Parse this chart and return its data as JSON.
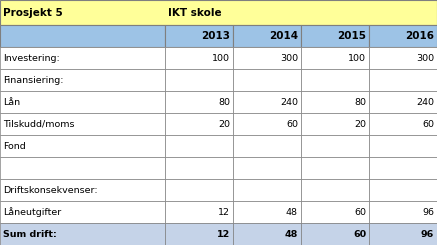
{
  "title_left": "Prosjekt 5",
  "title_right": "IKT skole",
  "header_years": [
    "2013",
    "2014",
    "2015",
    "2016"
  ],
  "rows": [
    {
      "label": "Investering:",
      "values": [
        "100",
        "300",
        "100",
        "300"
      ],
      "bold": false
    },
    {
      "label": "Finansiering:",
      "values": [
        "",
        "",
        "",
        ""
      ],
      "bold": false
    },
    {
      "label": "Lån",
      "values": [
        "80",
        "240",
        "80",
        "240"
      ],
      "bold": false
    },
    {
      "label": "Tilskudd/moms",
      "values": [
        "20",
        "60",
        "20",
        "60"
      ],
      "bold": false
    },
    {
      "label": "Fond",
      "values": [
        "",
        "",
        "",
        ""
      ],
      "bold": false
    },
    {
      "label": "",
      "values": [
        "",
        "",
        "",
        ""
      ],
      "bold": false
    },
    {
      "label": "Driftskonsekvenser:",
      "values": [
        "",
        "",
        "",
        ""
      ],
      "bold": false
    },
    {
      "label": "Låneutgifter",
      "values": [
        "12",
        "48",
        "60",
        "96"
      ],
      "bold": false
    },
    {
      "label": "Sum drift:",
      "values": [
        "12",
        "48",
        "60",
        "96"
      ],
      "bold": true
    }
  ],
  "title_bg": "#ffff99",
  "header_bg": "#9dc3e6",
  "white_bg": "#ffffff",
  "sum_bg": "#c5d3e8",
  "border_color": "#7f7f7f",
  "text_color": "#000000",
  "figsize": [
    4.37,
    2.45
  ],
  "dpi": 100
}
